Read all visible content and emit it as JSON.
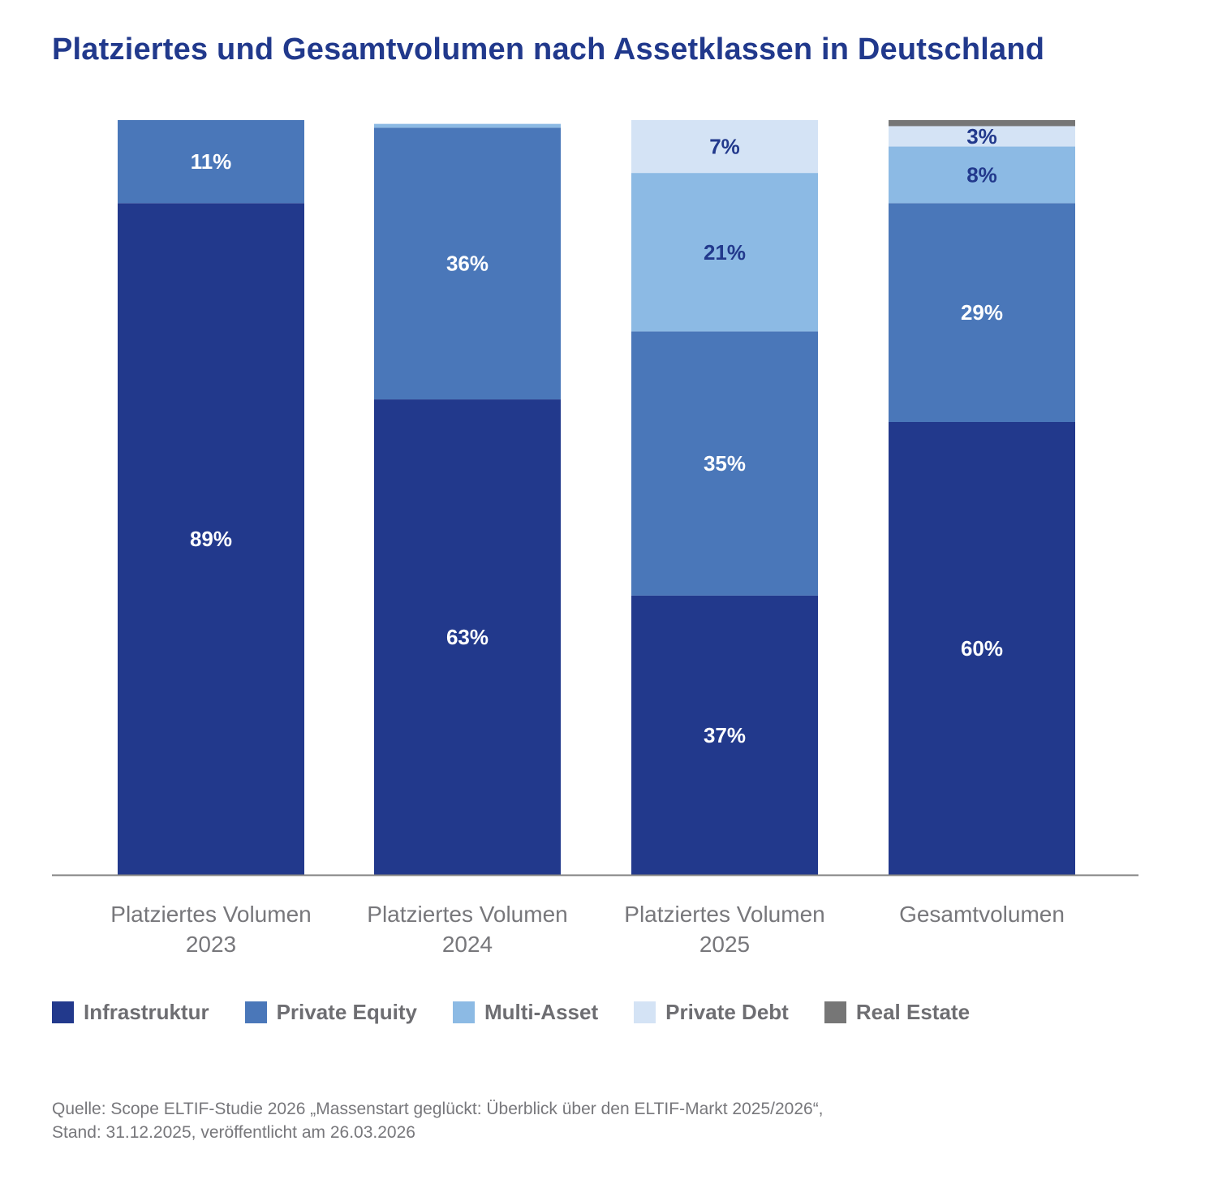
{
  "title": "Platziertes und Gesamtvolumen nach Assetklassen in Deutschland",
  "colors": {
    "Infrastruktur": "#22398c",
    "Private Equity": "#4a77b9",
    "Multi-Asset": "#8cbae4",
    "Private Debt": "#d4e3f5",
    "Real Estate": "#767676",
    "axis": "#808080",
    "category_label": "#77777b",
    "label_light": "#ffffff",
    "label_dark": "#22398c"
  },
  "chart_data": {
    "type": "bar",
    "stacked": true,
    "normalized_percent": true,
    "categories": [
      [
        "Platziertes Volumen",
        "2023"
      ],
      [
        "Platziertes Volumen",
        "2024"
      ],
      [
        "Platziertes Volumen",
        "2025"
      ],
      [
        "Gesamtvolumen"
      ]
    ],
    "series": [
      {
        "name": "Infrastruktur",
        "values": [
          89,
          63,
          37,
          60
        ],
        "labels": [
          "89%",
          "63%",
          "37%",
          "60%"
        ]
      },
      {
        "name": "Private Equity",
        "values": [
          11,
          36,
          35,
          29
        ],
        "labels": [
          "11%",
          "36%",
          "35%",
          "29%"
        ]
      },
      {
        "name": "Multi-Asset",
        "values": [
          0,
          0.5,
          21,
          7.5
        ],
        "labels": [
          "",
          "",
          "21%",
          "8%"
        ]
      },
      {
        "name": "Private Debt",
        "values": [
          0,
          0,
          7,
          2.7
        ],
        "labels": [
          "",
          "",
          "7%",
          "3%"
        ]
      },
      {
        "name": "Real Estate",
        "values": [
          0,
          0,
          0,
          0.8
        ],
        "labels": [
          "",
          "",
          "",
          ""
        ]
      }
    ],
    "ylim": [
      0,
      100
    ],
    "grid": false,
    "legend_position": "bottom-left"
  },
  "legend": [
    "Infrastruktur",
    "Private Equity",
    "Multi-Asset",
    "Private Debt",
    "Real Estate"
  ],
  "source": {
    "line1": "Quelle: Scope ELTIF-Studie 2026 „Massenstart geglückt: Überblick über den ELTIF-Markt 2025/2026“,",
    "line2": "Stand: 31.12.2025, veröffentlicht am 26.03.2026"
  }
}
